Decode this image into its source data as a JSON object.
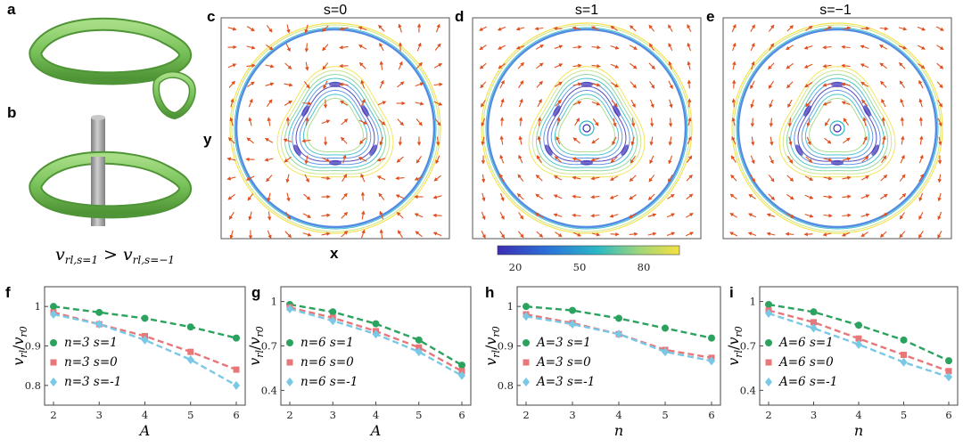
{
  "labels": {
    "a": "a",
    "b": "b",
    "c": "c",
    "d": "d",
    "e": "e",
    "f": "f",
    "g": "g",
    "h": "h",
    "i": "i"
  },
  "titles": {
    "c": "s=0",
    "d": "s=1",
    "e": "s=−1"
  },
  "axis": {
    "x": "x",
    "y": "y"
  },
  "inequality": {
    "lhs": "v",
    "lhs_sub": "rl,s=1",
    "op": ">",
    "rhs": "v",
    "rhs_sub": "rl,s=−1"
  },
  "colorbar": {
    "ticks": [
      "20",
      "50",
      "80"
    ],
    "min": 5,
    "max": 90,
    "colors": [
      "#3b2db3",
      "#2b72d9",
      "#2bb8c4",
      "#9fd67a",
      "#f5e03f"
    ]
  },
  "fields": {
    "c": {
      "swirl": 0
    },
    "d": {
      "swirl": 1
    },
    "e": {
      "swirl": -1
    }
  },
  "colors": {
    "s1": "#2ca25f",
    "s0": "#e8777a",
    "sm1": "#79c8e6",
    "tube": "#79c25a",
    "rod": "#a9a9a9",
    "arrow": "#e0501f"
  },
  "chart_data": [
    {
      "id": "f",
      "type": "line",
      "x": [
        2,
        3,
        4,
        5,
        6
      ],
      "xlabel": "A",
      "ylabel_var": "v",
      "ylabel_sub": "rl",
      "ylabel_div": "v",
      "ylabel_sub2": "r0",
      "ylim": [
        0.75,
        1.05
      ],
      "yticks": [
        "0.8",
        "0.9",
        "1"
      ],
      "ytickvals": [
        0.8,
        0.9,
        1.0
      ],
      "xticks": [
        "2",
        "3",
        "4",
        "5",
        "6"
      ],
      "series": [
        {
          "name": "n=3 s=1",
          "values": [
            1.0,
            0.985,
            0.97,
            0.948,
            0.92
          ]
        },
        {
          "name": "n=3 s=0",
          "values": [
            0.985,
            0.955,
            0.925,
            0.885,
            0.84
          ]
        },
        {
          "name": "n=3 s=-1",
          "values": [
            0.98,
            0.955,
            0.915,
            0.865,
            0.8
          ]
        }
      ]
    },
    {
      "id": "g",
      "type": "line",
      "x": [
        2,
        3,
        4,
        5,
        6
      ],
      "xlabel": "A",
      "ylabel_var": "v",
      "ylabel_sub": "rl",
      "ylabel_div": "v",
      "ylabel_sub2": "r0",
      "ylim": [
        0.3,
        1.1
      ],
      "yticks": [
        "0.4",
        "0.7",
        "1"
      ],
      "ytickvals": [
        0.4,
        0.7,
        1.0
      ],
      "xticks": [
        "2",
        "3",
        "4",
        "5",
        "6"
      ],
      "series": [
        {
          "name": "n=6 s=1",
          "values": [
            0.98,
            0.93,
            0.85,
            0.74,
            0.57
          ]
        },
        {
          "name": "n=6 s=0",
          "values": [
            0.96,
            0.89,
            0.8,
            0.69,
            0.53
          ]
        },
        {
          "name": "n=6 s=-1",
          "values": [
            0.95,
            0.87,
            0.78,
            0.66,
            0.5
          ]
        }
      ]
    },
    {
      "id": "h",
      "type": "line",
      "x": [
        2,
        3,
        4,
        5,
        6
      ],
      "xlabel": "n",
      "ylabel_var": "v",
      "ylabel_sub": "rl",
      "ylabel_div": "v",
      "ylabel_sub2": "r0",
      "ylim": [
        0.75,
        1.05
      ],
      "yticks": [
        "0.8",
        "0.9",
        "1"
      ],
      "ytickvals": [
        0.8,
        0.9,
        1.0
      ],
      "xticks": [
        "2",
        "3",
        "4",
        "5",
        "6"
      ],
      "series": [
        {
          "name": "A=3 s=1",
          "values": [
            1.0,
            0.99,
            0.97,
            0.945,
            0.92
          ]
        },
        {
          "name": "A=3 s=0",
          "values": [
            0.98,
            0.958,
            0.93,
            0.89,
            0.87
          ]
        },
        {
          "name": "A=3 s=-1",
          "values": [
            0.975,
            0.955,
            0.93,
            0.885,
            0.862
          ]
        }
      ]
    },
    {
      "id": "i",
      "type": "line",
      "x": [
        2,
        3,
        4,
        5,
        6
      ],
      "xlabel": "n",
      "ylabel_var": "v",
      "ylabel_sub": "rl",
      "ylabel_div": "v",
      "ylabel_sub2": "r0",
      "ylim": [
        0.3,
        1.1
      ],
      "yticks": [
        "0.4",
        "0.7",
        "1"
      ],
      "ytickvals": [
        0.4,
        0.7,
        1.0
      ],
      "xticks": [
        "2",
        "3",
        "4",
        "5",
        "6"
      ],
      "series": [
        {
          "name": "A=6 s=1",
          "values": [
            0.98,
            0.93,
            0.84,
            0.74,
            0.6
          ]
        },
        {
          "name": "A=6 s=0",
          "values": [
            0.94,
            0.86,
            0.75,
            0.64,
            0.53
          ]
        },
        {
          "name": "A=6 s=-1",
          "values": [
            0.92,
            0.82,
            0.71,
            0.59,
            0.49
          ]
        }
      ]
    }
  ]
}
